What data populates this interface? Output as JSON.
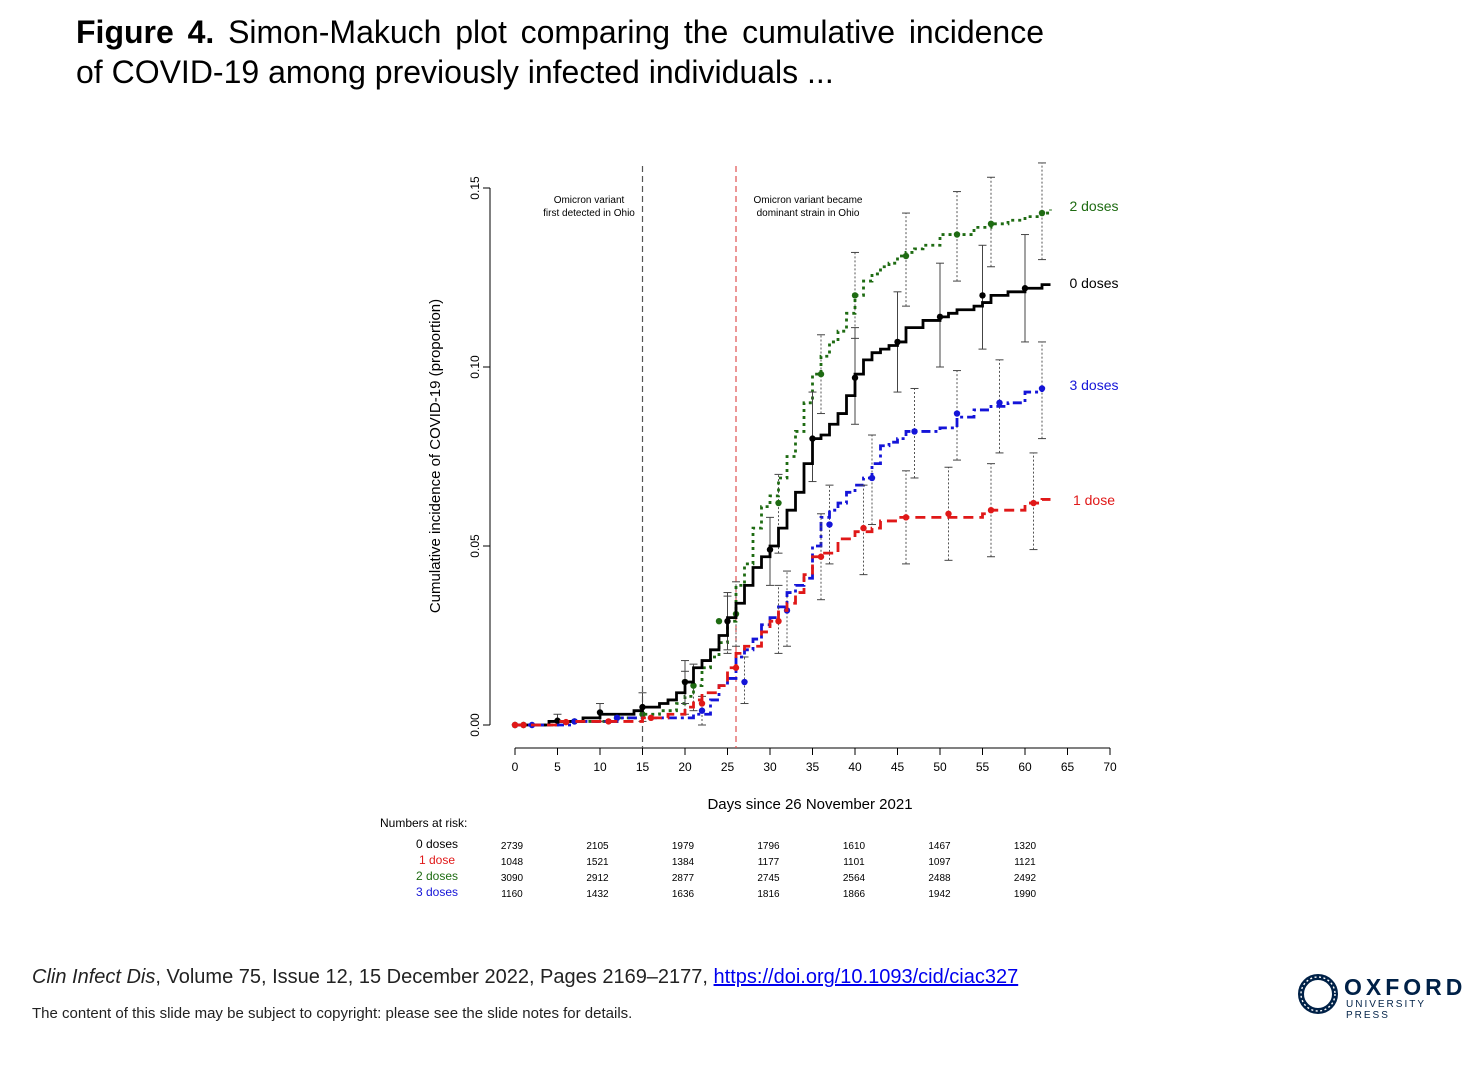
{
  "slide": {
    "title_bold": "Figure 4.",
    "title_rest": "Simon-Makuch plot comparing the cumulative incidence of COVID-19 among previously infected individuals ...",
    "citation_journal": "Clin Infect Dis",
    "citation_rest": ", Volume 75, Issue 12, 15 December 2022, Pages 2169–2177, ",
    "citation_link": "https://doi.org/10.1093/cid/ciac327",
    "copyright": "The content of this slide may be subject to copyright: please see the slide notes for details.",
    "logo_word": "OXFORD",
    "logo_sub": "UNIVERSITY PRESS",
    "logo_color": "#002147"
  },
  "chart_data": {
    "type": "line",
    "xlabel": "Days since 26 November 2021",
    "ylabel": "Cumulative incidence of COVID-19 (proportion)",
    "xlim": [
      0,
      70
    ],
    "ylim": [
      0,
      0.15
    ],
    "xticks": [
      "0",
      "5",
      "10",
      "15",
      "20",
      "25",
      "30",
      "35",
      "40",
      "45",
      "50",
      "55",
      "60",
      "65",
      "70"
    ],
    "yticks": [
      "0.00",
      "0.05",
      "0.10",
      "0.15"
    ],
    "grid": false,
    "legend": "right-end labels",
    "annotations": [
      {
        "x": 15,
        "color": "#555555",
        "text": [
          "Omicron variant",
          "first detected in Ohio"
        ]
      },
      {
        "x": 26,
        "color": "#e05050",
        "text": [
          "Omicron variant became",
          "dominant strain in Ohio"
        ]
      }
    ],
    "series": [
      {
        "name": "2 doses",
        "color": "#1e6b12",
        "dash": "dotted",
        "x": [
          0,
          2,
          5,
          7,
          10,
          12,
          15,
          17,
          19,
          20,
          21,
          22,
          23,
          24,
          25,
          26,
          27,
          28,
          29,
          30,
          31,
          32,
          33,
          34,
          35,
          36,
          37,
          38,
          39,
          40,
          41,
          42,
          43,
          44,
          45,
          46,
          47,
          48,
          50,
          52,
          54,
          56,
          58,
          60,
          62,
          63
        ],
        "y": [
          0,
          0,
          0.001,
          0.001,
          0.001,
          0.002,
          0.003,
          0.004,
          0.006,
          0.008,
          0.011,
          0.016,
          0.019,
          0.023,
          0.029,
          0.039,
          0.045,
          0.055,
          0.061,
          0.064,
          0.069,
          0.075,
          0.082,
          0.09,
          0.098,
          0.103,
          0.107,
          0.11,
          0.115,
          0.12,
          0.124,
          0.126,
          0.128,
          0.129,
          0.131,
          0.132,
          0.133,
          0.134,
          0.137,
          0.137,
          0.139,
          0.14,
          0.141,
          0.142,
          0.143,
          0.144
        ],
        "markers": {
          "x": [
            1,
            7,
            12,
            15,
            20,
            21,
            24,
            26,
            31,
            36,
            40,
            46,
            52,
            56,
            62
          ],
          "y": [
            0,
            0.001,
            0.002,
            0.003,
            0.012,
            0.011,
            0.029,
            0.031,
            0.062,
            0.098,
            0.12,
            0.131,
            0.137,
            0.14,
            0.143
          ]
        },
        "ci": {
          "x": [
            20,
            21,
            25,
            26,
            31,
            36,
            40,
            46,
            52,
            56,
            62
          ],
          "low": [
            0.003,
            0.004,
            0.02,
            0.022,
            0.048,
            0.087,
            0.108,
            0.117,
            0.124,
            0.128,
            0.13
          ],
          "high": [
            0.015,
            0.017,
            0.036,
            0.04,
            0.07,
            0.109,
            0.132,
            0.143,
            0.149,
            0.153,
            0.157
          ]
        }
      },
      {
        "name": "0 doses",
        "color": "#000000",
        "dash": "solid",
        "x": [
          0,
          2,
          4,
          5,
          8,
          10,
          12,
          14,
          15,
          17,
          18,
          19,
          20,
          21,
          22,
          23,
          24,
          25,
          26,
          27,
          28,
          29,
          30,
          31,
          32,
          33,
          34,
          35,
          36,
          37,
          38,
          39,
          40,
          41,
          42,
          43,
          44,
          45,
          46,
          48,
          50,
          51,
          52,
          54,
          55,
          56,
          58,
          60,
          62,
          63
        ],
        "y": [
          0,
          0,
          0.001,
          0.001,
          0.002,
          0.003,
          0.003,
          0.004,
          0.005,
          0.006,
          0.007,
          0.009,
          0.012,
          0.016,
          0.018,
          0.021,
          0.025,
          0.03,
          0.034,
          0.039,
          0.044,
          0.047,
          0.05,
          0.055,
          0.06,
          0.065,
          0.073,
          0.08,
          0.081,
          0.084,
          0.087,
          0.092,
          0.098,
          0.102,
          0.104,
          0.105,
          0.106,
          0.107,
          0.111,
          0.113,
          0.114,
          0.115,
          0.116,
          0.117,
          0.118,
          0.12,
          0.121,
          0.122,
          0.123,
          0.123
        ],
        "markers": {
          "x": [
            0,
            5,
            10,
            15,
            20,
            25,
            30,
            35,
            40,
            45,
            50,
            55,
            60
          ],
          "y": [
            0,
            0.0012,
            0.0035,
            0.005,
            0.012,
            0.029,
            0.049,
            0.08,
            0.097,
            0.107,
            0.114,
            0.12,
            0.122
          ]
        },
        "ci": {
          "x": [
            5,
            10,
            15,
            20,
            25,
            30,
            35,
            40,
            45,
            50,
            55,
            60
          ],
          "low": [
            0,
            0.001,
            0.001,
            0.006,
            0.021,
            0.039,
            0.068,
            0.084,
            0.093,
            0.1,
            0.105,
            0.107
          ],
          "high": [
            0.003,
            0.006,
            0.009,
            0.018,
            0.037,
            0.058,
            0.093,
            0.111,
            0.121,
            0.129,
            0.134,
            0.137
          ]
        }
      },
      {
        "name": "3 doses",
        "color": "#1414d8",
        "dash": "dashdot",
        "x": [
          0,
          2,
          3,
          7,
          10,
          12,
          15,
          17,
          19,
          20,
          21,
          22,
          23,
          24,
          25,
          26,
          27,
          28,
          29,
          30,
          31,
          32,
          33,
          34,
          35,
          36,
          37,
          38,
          39,
          40,
          41,
          42,
          43,
          44,
          45,
          46,
          48,
          50,
          52,
          54,
          56,
          58,
          60,
          62
        ],
        "y": [
          0,
          0,
          0,
          0.001,
          0.001,
          0.002,
          0.002,
          0.002,
          0.002,
          0.002,
          0.003,
          0.003,
          0.007,
          0.011,
          0.013,
          0.019,
          0.021,
          0.024,
          0.028,
          0.03,
          0.033,
          0.037,
          0.039,
          0.041,
          0.05,
          0.058,
          0.06,
          0.062,
          0.065,
          0.067,
          0.069,
          0.073,
          0.078,
          0.079,
          0.08,
          0.082,
          0.082,
          0.083,
          0.086,
          0.088,
          0.089,
          0.09,
          0.093,
          0.094
        ],
        "markers": {
          "x": [
            2,
            7,
            12,
            22,
            27,
            32,
            37,
            42,
            47,
            52,
            57,
            62
          ],
          "y": [
            0,
            0.001,
            0.002,
            0.004,
            0.012,
            0.032,
            0.056,
            0.069,
            0.082,
            0.087,
            0.09,
            0.094
          ]
        },
        "ci": {
          "x": [
            22,
            27,
            32,
            37,
            42,
            47,
            52,
            57,
            62
          ],
          "low": [
            0,
            0.006,
            0.022,
            0.045,
            0.056,
            0.069,
            0.074,
            0.076,
            0.08
          ],
          "high": [
            0.008,
            0.019,
            0.043,
            0.067,
            0.081,
            0.094,
            0.099,
            0.102,
            0.107
          ]
        }
      },
      {
        "name": "1 dose",
        "color": "#e01818",
        "dash": "dashed",
        "x": [
          0,
          3,
          5,
          8,
          10,
          15,
          17,
          18,
          20,
          21,
          22,
          24,
          25,
          26,
          27,
          29,
          30,
          31,
          32,
          33,
          34,
          35,
          36,
          38,
          40,
          42,
          43,
          45,
          50,
          55,
          56,
          60,
          62,
          63
        ],
        "y": [
          0,
          0,
          0.001,
          0.001,
          0.001,
          0.002,
          0.002,
          0.003,
          0.005,
          0.007,
          0.009,
          0.011,
          0.016,
          0.02,
          0.022,
          0.026,
          0.029,
          0.032,
          0.034,
          0.037,
          0.042,
          0.047,
          0.048,
          0.052,
          0.054,
          0.055,
          0.057,
          0.058,
          0.058,
          0.059,
          0.06,
          0.062,
          0.063,
          0.063
        ],
        "markers": {
          "x": [
            0,
            1,
            6,
            11,
            16,
            22,
            26,
            31,
            36,
            41,
            46,
            51,
            56,
            61
          ],
          "y": [
            0,
            0,
            0.0008,
            0.001,
            0.002,
            0.006,
            0.016,
            0.029,
            0.047,
            0.055,
            0.058,
            0.059,
            0.06,
            0.062
          ]
        },
        "ci": {
          "x": [
            31,
            36,
            41,
            46,
            51,
            56,
            61
          ],
          "low": [
            0.02,
            0.035,
            0.042,
            0.045,
            0.046,
            0.047,
            0.049
          ],
          "high": [
            0.039,
            0.059,
            0.067,
            0.071,
            0.072,
            0.073,
            0.076
          ]
        }
      }
    ],
    "at_risk": {
      "title": "Numbers at risk:",
      "x": [
        0,
        10,
        20,
        30,
        40,
        50,
        60
      ],
      "rows": [
        {
          "label": "0 doses",
          "color": "#000000",
          "values": [
            "2739",
            "2105",
            "1979",
            "1796",
            "1610",
            "1467",
            "1320"
          ]
        },
        {
          "label": "1 dose",
          "color": "#e01818",
          "values": [
            "1048",
            "1521",
            "1384",
            "1177",
            "1101",
            "1097",
            "1121"
          ]
        },
        {
          "label": "2 doses",
          "color": "#1e6b12",
          "values": [
            "3090",
            "2912",
            "2877",
            "2745",
            "2564",
            "2488",
            "2492"
          ]
        },
        {
          "label": "3 doses",
          "color": "#1414d8",
          "values": [
            "1160",
            "1432",
            "1636",
            "1816",
            "1866",
            "1942",
            "1990"
          ]
        }
      ]
    }
  }
}
